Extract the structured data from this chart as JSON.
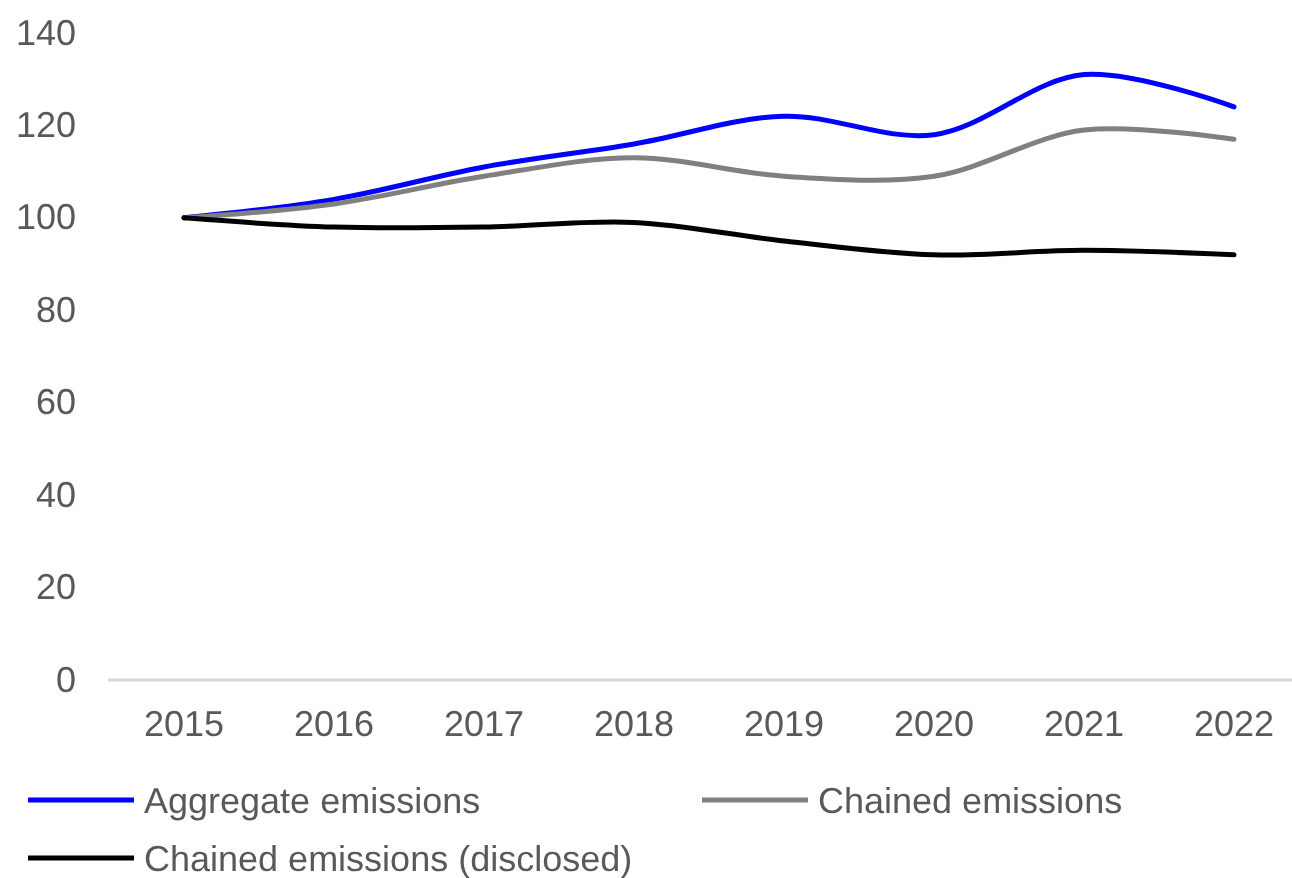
{
  "chart_data": {
    "type": "line",
    "categories": [
      "2015",
      "2016",
      "2017",
      "2018",
      "2019",
      "2020",
      "2021",
      "2022"
    ],
    "series": [
      {
        "name": "Aggregate emissions",
        "color": "#0000ff",
        "values": [
          100,
          104,
          111,
          116,
          122,
          118,
          131,
          124
        ]
      },
      {
        "name": "Chained emissions",
        "color": "#808080",
        "values": [
          100,
          103,
          109,
          113,
          109,
          109,
          119,
          117
        ]
      },
      {
        "name": "Chained emissions (disclosed)",
        "color": "#000000",
        "values": [
          100,
          98,
          98,
          99,
          95,
          92,
          93,
          92
        ]
      }
    ],
    "ylim": [
      0,
      140
    ],
    "yticks": [
      0,
      20,
      40,
      60,
      80,
      100,
      120,
      140
    ],
    "legend": "bottom"
  }
}
